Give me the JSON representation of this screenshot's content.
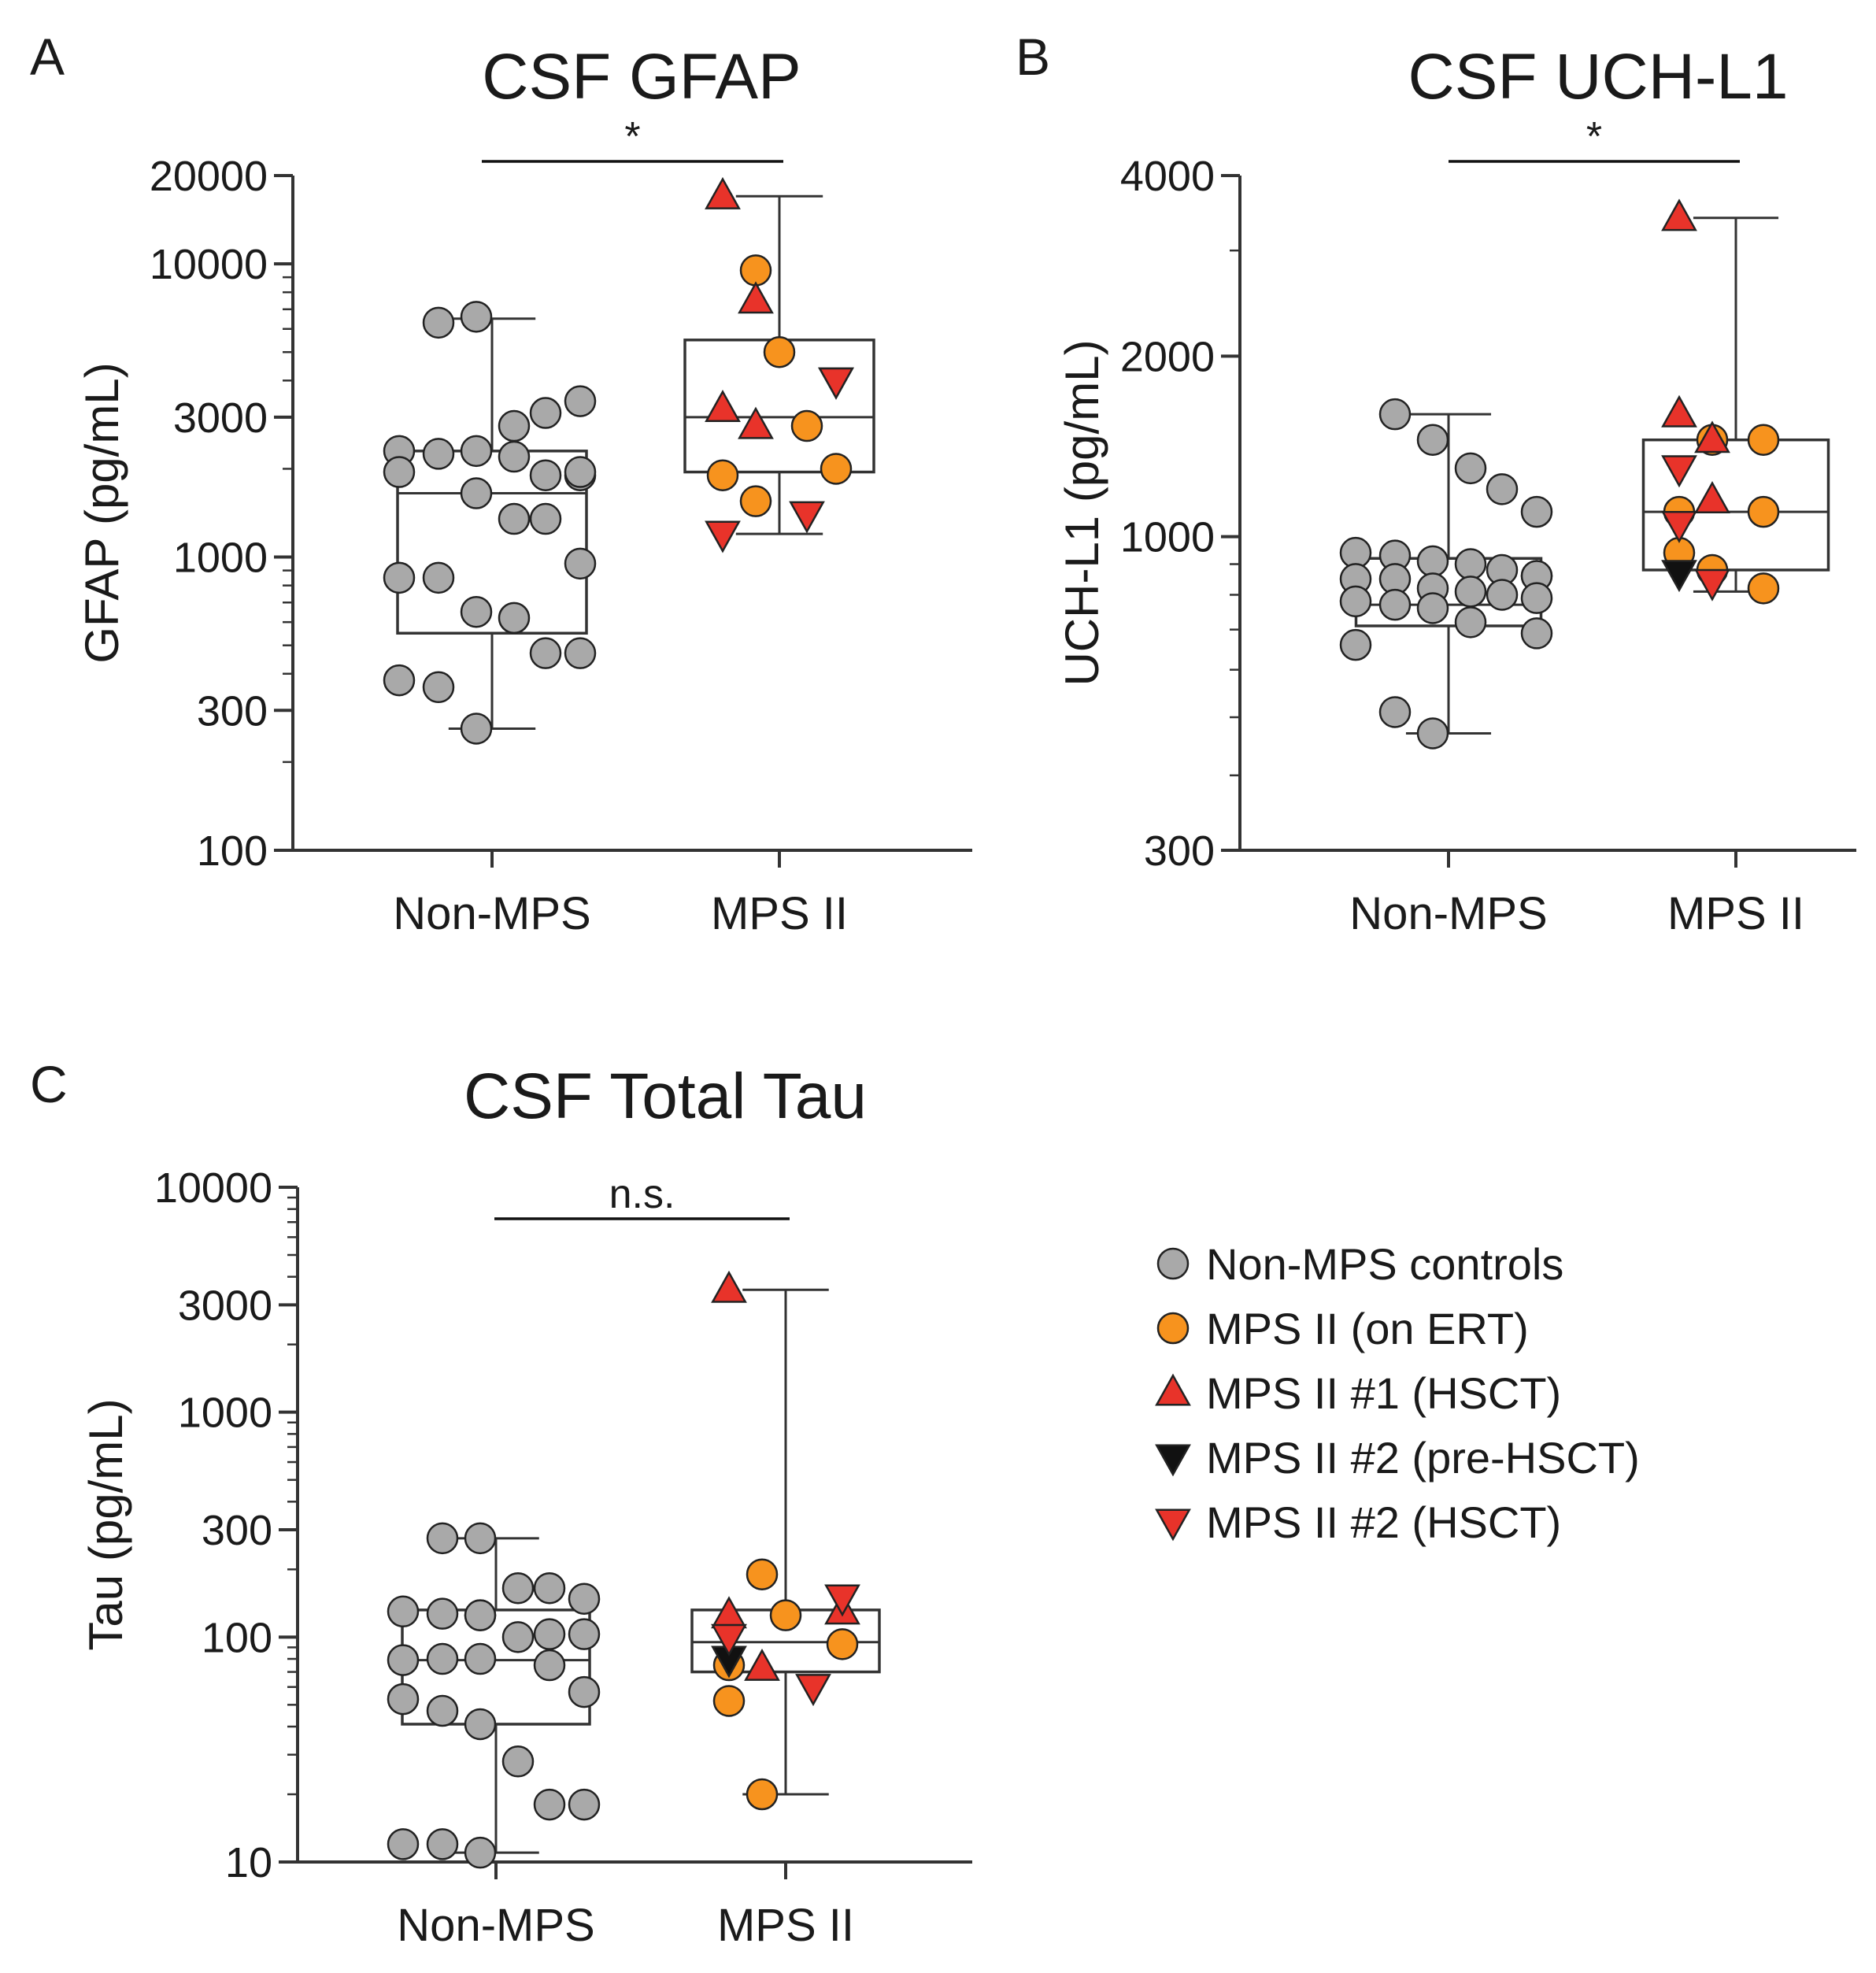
{
  "colors": {
    "non_mps": "#a9a9a9",
    "mps_on_ert": "#f7931e",
    "hsct_1": "#e8332a",
    "pre_hsct_2": "#111111",
    "hsct_2": "#e8332a"
  },
  "legend": [
    {
      "key": "non_mps",
      "label": "Non-MPS controls",
      "marker": "circle",
      "color": "#a9a9a9"
    },
    {
      "key": "mps_on_ert",
      "label": "MPS II (on ERT)",
      "marker": "circle",
      "color": "#f7931e"
    },
    {
      "key": "hsct_1",
      "label": "MPS II #1 (HSCT)",
      "marker": "triangle-up",
      "color": "#e8332a"
    },
    {
      "key": "pre_hsct_2",
      "label": "MPS II #2 (pre-HSCT)",
      "marker": "triangle-down",
      "color": "#111111"
    },
    {
      "key": "hsct_2",
      "label": "MPS II #2 (HSCT)",
      "marker": "triangle-down",
      "color": "#e8332a"
    }
  ],
  "chart_data": [
    {
      "panel": "A",
      "type": "box+scatter",
      "title": "CSF GFAP",
      "ylabel": "GFAP (pg/mL)",
      "yscale": "log",
      "ylim": [
        100,
        20000
      ],
      "yticks": [
        100,
        300,
        1000,
        3000,
        10000,
        20000
      ],
      "categories": [
        "Non-MPS",
        "MPS II"
      ],
      "significance": "*",
      "boxes": [
        {
          "category": "Non-MPS",
          "min": 260,
          "q1": 550,
          "median": 1650,
          "q3": 2300,
          "max": 6500
        },
        {
          "category": "MPS II",
          "min": 1200,
          "q1": 1950,
          "median": 3000,
          "q3": 5500,
          "max": 17000
        }
      ],
      "points": [
        {
          "group": "non_mps",
          "category": "Non-MPS",
          "values": [
            6300,
            6600,
            2800,
            3100,
            3400,
            2300,
            2250,
            2300,
            2200,
            1900,
            1900,
            1950,
            1950,
            1650,
            1350,
            1350,
            950,
            850,
            850,
            650,
            620,
            470,
            470,
            380,
            360,
            260
          ]
        },
        {
          "group": "mps_on_ert",
          "category": "MPS II",
          "values": [
            9500,
            5000,
            2800,
            2000,
            1900,
            1550
          ]
        },
        {
          "group": "hsct_1",
          "category": "MPS II",
          "values": [
            17000,
            7500,
            3200,
            2800
          ]
        },
        {
          "group": "pre_hsct_2",
          "category": "MPS II",
          "values": [
            4000
          ]
        },
        {
          "group": "hsct_2",
          "category": "MPS II",
          "values": [
            4000,
            1400,
            1200
          ]
        }
      ]
    },
    {
      "panel": "B",
      "type": "box+scatter",
      "title": "CSF UCH-L1",
      "ylabel": "UCH-L1 (pg/mL)",
      "yscale": "log",
      "ylim": [
        300,
        4000
      ],
      "yticks": [
        300,
        1000,
        2000,
        4000
      ],
      "categories": [
        "Non-MPS",
        "MPS II"
      ],
      "significance": "*",
      "boxes": [
        {
          "category": "Non-MPS",
          "min": 470,
          "q1": 710,
          "median": 770,
          "q3": 920,
          "max": 1600
        },
        {
          "category": "MPS II",
          "min": 810,
          "q1": 880,
          "median": 1100,
          "q3": 1450,
          "max": 3400
        }
      ],
      "points": [
        {
          "group": "non_mps",
          "category": "Non-MPS",
          "values": [
            1600,
            1450,
            1300,
            1200,
            1100,
            940,
            930,
            910,
            900,
            880,
            860,
            860,
            850,
            850,
            820,
            810,
            800,
            790,
            780,
            770,
            760,
            720,
            690,
            660,
            510,
            470
          ]
        },
        {
          "group": "mps_on_ert",
          "category": "MPS II",
          "values": [
            1450,
            1450,
            1100,
            1100,
            940,
            880,
            820
          ]
        },
        {
          "group": "hsct_1",
          "category": "MPS II",
          "values": [
            3400,
            1600,
            1450,
            1150
          ]
        },
        {
          "group": "pre_hsct_2",
          "category": "MPS II",
          "values": [
            870
          ]
        },
        {
          "group": "hsct_2",
          "category": "MPS II",
          "values": [
            1300,
            1050,
            840
          ]
        }
      ]
    },
    {
      "panel": "C",
      "type": "box+scatter",
      "title": "CSF Total Tau",
      "ylabel": "Tau (pg/mL)",
      "yscale": "log",
      "ylim": [
        10,
        10000
      ],
      "yticks": [
        10,
        100,
        300,
        1000,
        3000,
        10000
      ],
      "categories": [
        "Non-MPS",
        "MPS II"
      ],
      "significance": "n.s.",
      "boxes": [
        {
          "category": "Non-MPS",
          "min": 11,
          "q1": 41,
          "median": 79,
          "q3": 132,
          "max": 275
        },
        {
          "category": "MPS II",
          "min": 20,
          "q1": 70,
          "median": 95,
          "q3": 132,
          "max": 3500
        }
      ],
      "points": [
        {
          "group": "non_mps",
          "category": "Non-MPS",
          "values": [
            275,
            275,
            165,
            165,
            148,
            130,
            127,
            125,
            125,
            103,
            103,
            100,
            80,
            80,
            79,
            75,
            57,
            53,
            47,
            41,
            28,
            18,
            18,
            12,
            12,
            11
          ]
        },
        {
          "group": "mps_on_ert",
          "category": "MPS II",
          "values": [
            190,
            125,
            93,
            75,
            52,
            20
          ]
        },
        {
          "group": "hsct_1",
          "category": "MPS II",
          "values": [
            3500,
            130,
            125,
            73
          ]
        },
        {
          "group": "pre_hsct_2",
          "category": "MPS II",
          "values": [
            80
          ]
        },
        {
          "group": "hsct_2",
          "category": "MPS II",
          "values": [
            150,
            100,
            60
          ]
        }
      ]
    }
  ]
}
